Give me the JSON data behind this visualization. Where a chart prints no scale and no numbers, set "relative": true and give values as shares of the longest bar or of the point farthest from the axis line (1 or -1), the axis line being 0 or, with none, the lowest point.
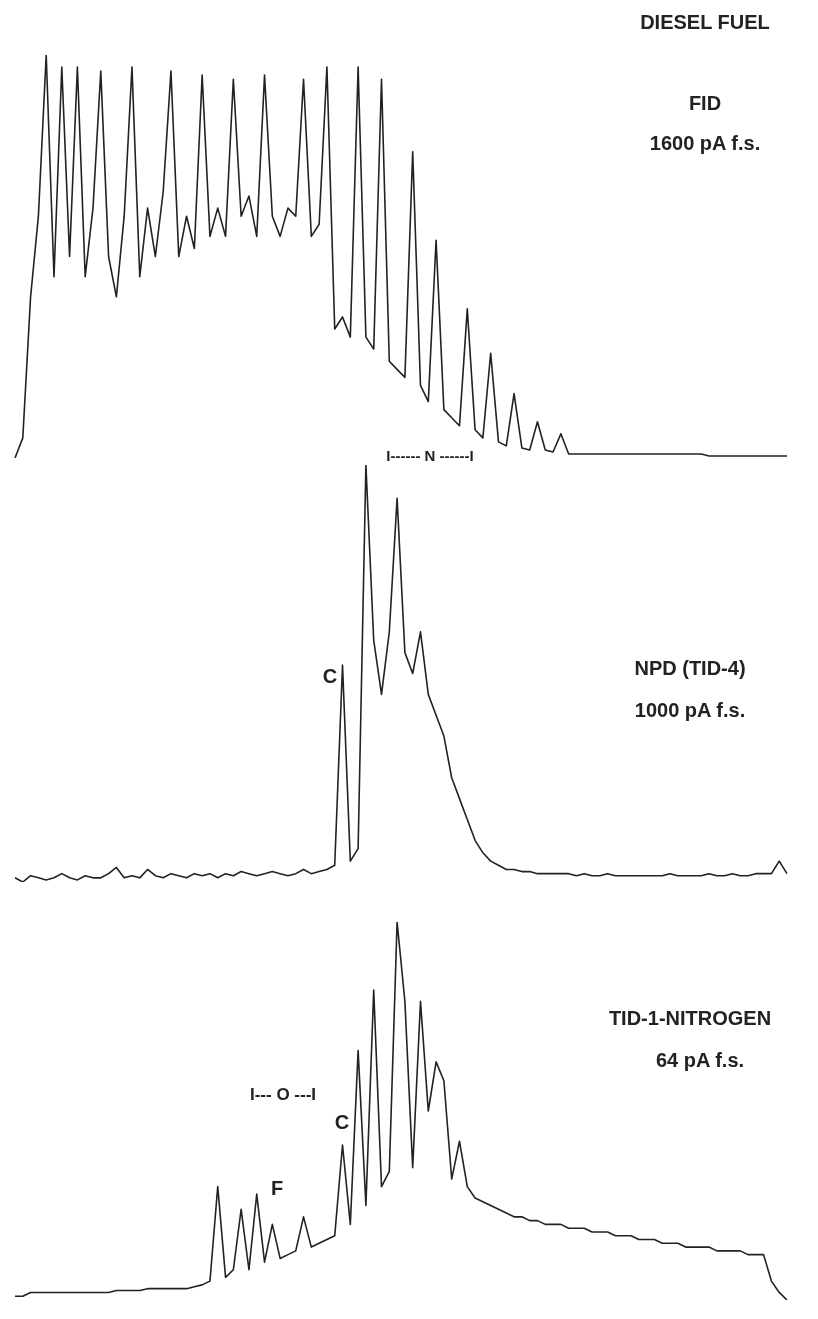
{
  "chart_data": [
    {
      "type": "line",
      "title": "DIESEL FUEL",
      "annotations": [
        "FID",
        "1600 pA f.s."
      ],
      "relative": true,
      "color": "#222222",
      "categories": [
        null,
        null,
        null,
        null,
        null,
        null,
        null,
        null,
        null,
        null,
        null,
        null,
        null,
        null,
        null,
        null,
        null,
        null,
        null,
        null,
        null,
        null,
        null,
        null,
        null,
        null,
        null,
        null,
        null,
        null,
        null,
        null,
        null,
        null,
        null,
        null,
        null,
        null,
        null,
        null,
        null,
        null,
        null,
        null,
        null,
        null,
        null,
        null,
        null,
        null,
        null,
        null,
        null,
        null,
        null,
        null,
        null,
        null,
        null,
        null,
        null,
        null,
        null,
        null,
        null,
        null,
        null,
        null,
        null,
        null,
        null,
        null,
        null,
        null,
        null,
        null,
        null,
        null,
        null,
        null,
        null,
        null,
        null,
        null,
        null,
        null,
        null,
        null,
        null,
        null,
        null,
        null,
        null,
        null,
        null,
        null,
        null,
        null,
        null,
        null
      ],
      "values": [
        0,
        0.05,
        0.4,
        0.6,
        1.0,
        0.45,
        0.97,
        0.5,
        0.97,
        0.45,
        0.62,
        0.96,
        0.5,
        0.4,
        0.6,
        0.97,
        0.45,
        0.62,
        0.5,
        0.66,
        0.96,
        0.5,
        0.6,
        0.52,
        0.95,
        0.55,
        0.62,
        0.55,
        0.94,
        0.6,
        0.65,
        0.55,
        0.95,
        0.6,
        0.55,
        0.62,
        0.6,
        0.94,
        0.55,
        0.58,
        0.97,
        0.32,
        0.35,
        0.3,
        0.97,
        0.3,
        0.27,
        0.94,
        0.24,
        0.22,
        0.2,
        0.76,
        0.18,
        0.14,
        0.54,
        0.12,
        0.1,
        0.08,
        0.37,
        0.07,
        0.05,
        0.26,
        0.04,
        0.03,
        0.16,
        0.025,
        0.02,
        0.09,
        0.02,
        0.015,
        0.06,
        0.01,
        0.01,
        0.01,
        0.01,
        0.01,
        0.01,
        0.01,
        0.01,
        0.01,
        0.01,
        0.01,
        0.01,
        0.01,
        0.01,
        0.01,
        0.01,
        0.01,
        0.01,
        0.005,
        0.005,
        0.005,
        0.005,
        0.005,
        0.005,
        0.005,
        0.005,
        0.005,
        0.005,
        0.005
      ]
    },
    {
      "type": "line",
      "annotations": [
        "I------ N ------I",
        "C",
        "NPD (TID-4)",
        "1000 pA f.s."
      ],
      "relative": true,
      "color": "#222222",
      "categories": [
        null,
        null,
        null,
        null,
        null,
        null,
        null,
        null,
        null,
        null,
        null,
        null,
        null,
        null,
        null,
        null,
        null,
        null,
        null,
        null,
        null,
        null,
        null,
        null,
        null,
        null,
        null,
        null,
        null,
        null,
        null,
        null,
        null,
        null,
        null,
        null,
        null,
        null,
        null,
        null,
        null,
        null,
        null,
        null,
        null,
        null,
        null,
        null,
        null,
        null,
        null,
        null,
        null,
        null,
        null,
        null,
        null,
        null,
        null,
        null,
        null,
        null,
        null,
        null,
        null,
        null,
        null,
        null,
        null,
        null,
        null,
        null,
        null,
        null,
        null,
        null,
        null,
        null,
        null,
        null,
        null,
        null,
        null,
        null,
        null,
        null,
        null,
        null,
        null,
        null,
        null,
        null,
        null,
        null,
        null,
        null,
        null,
        null,
        null,
        null
      ],
      "values": [
        0.01,
        0.0,
        0.015,
        0.01,
        0.005,
        0.01,
        0.02,
        0.01,
        0.005,
        0.015,
        0.01,
        0.01,
        0.02,
        0.035,
        0.01,
        0.015,
        0.01,
        0.03,
        0.015,
        0.01,
        0.02,
        0.015,
        0.01,
        0.02,
        0.015,
        0.02,
        0.01,
        0.02,
        0.015,
        0.025,
        0.02,
        0.015,
        0.02,
        0.025,
        0.02,
        0.015,
        0.02,
        0.03,
        0.02,
        0.025,
        0.03,
        0.04,
        0.52,
        0.05,
        0.08,
        1.0,
        0.58,
        0.45,
        0.6,
        0.92,
        0.55,
        0.5,
        0.6,
        0.45,
        0.4,
        0.35,
        0.25,
        0.2,
        0.15,
        0.1,
        0.07,
        0.05,
        0.04,
        0.03,
        0.03,
        0.025,
        0.025,
        0.02,
        0.02,
        0.02,
        0.02,
        0.02,
        0.015,
        0.02,
        0.015,
        0.015,
        0.02,
        0.015,
        0.015,
        0.015,
        0.015,
        0.015,
        0.015,
        0.015,
        0.02,
        0.015,
        0.015,
        0.015,
        0.015,
        0.02,
        0.015,
        0.015,
        0.02,
        0.015,
        0.015,
        0.02,
        0.02,
        0.02,
        0.05,
        0.02
      ]
    },
    {
      "type": "line",
      "annotations": [
        "I--- O ---I",
        "C",
        "F",
        "TID-1-NITROGEN",
        "64 pA f.s."
      ],
      "relative": true,
      "color": "#222222",
      "categories": [
        null,
        null,
        null,
        null,
        null,
        null,
        null,
        null,
        null,
        null,
        null,
        null,
        null,
        null,
        null,
        null,
        null,
        null,
        null,
        null,
        null,
        null,
        null,
        null,
        null,
        null,
        null,
        null,
        null,
        null,
        null,
        null,
        null,
        null,
        null,
        null,
        null,
        null,
        null,
        null,
        null,
        null,
        null,
        null,
        null,
        null,
        null,
        null,
        null,
        null,
        null,
        null,
        null,
        null,
        null,
        null,
        null,
        null,
        null,
        null,
        null,
        null,
        null,
        null,
        null,
        null,
        null,
        null,
        null,
        null,
        null,
        null,
        null,
        null,
        null,
        null,
        null,
        null,
        null,
        null,
        null,
        null,
        null,
        null,
        null,
        null,
        null,
        null,
        null,
        null,
        null,
        null,
        null,
        null,
        null,
        null,
        null,
        null,
        null,
        null
      ],
      "values": [
        0.01,
        0.01,
        0.02,
        0.02,
        0.02,
        0.02,
        0.02,
        0.02,
        0.02,
        0.02,
        0.02,
        0.02,
        0.02,
        0.025,
        0.025,
        0.025,
        0.025,
        0.03,
        0.03,
        0.03,
        0.03,
        0.03,
        0.03,
        0.035,
        0.04,
        0.05,
        0.3,
        0.06,
        0.08,
        0.24,
        0.08,
        0.28,
        0.1,
        0.2,
        0.11,
        0.12,
        0.13,
        0.22,
        0.14,
        0.15,
        0.16,
        0.17,
        0.41,
        0.2,
        0.66,
        0.25,
        0.82,
        0.3,
        0.34,
        1.0,
        0.79,
        0.35,
        0.79,
        0.5,
        0.63,
        0.58,
        0.32,
        0.42,
        0.3,
        0.27,
        0.26,
        0.25,
        0.24,
        0.23,
        0.22,
        0.22,
        0.21,
        0.21,
        0.2,
        0.2,
        0.2,
        0.19,
        0.19,
        0.19,
        0.18,
        0.18,
        0.18,
        0.17,
        0.17,
        0.17,
        0.16,
        0.16,
        0.16,
        0.15,
        0.15,
        0.15,
        0.14,
        0.14,
        0.14,
        0.14,
        0.13,
        0.13,
        0.13,
        0.13,
        0.12,
        0.12,
        0.12,
        0.05,
        0.02,
        0.0
      ]
    }
  ]
}
